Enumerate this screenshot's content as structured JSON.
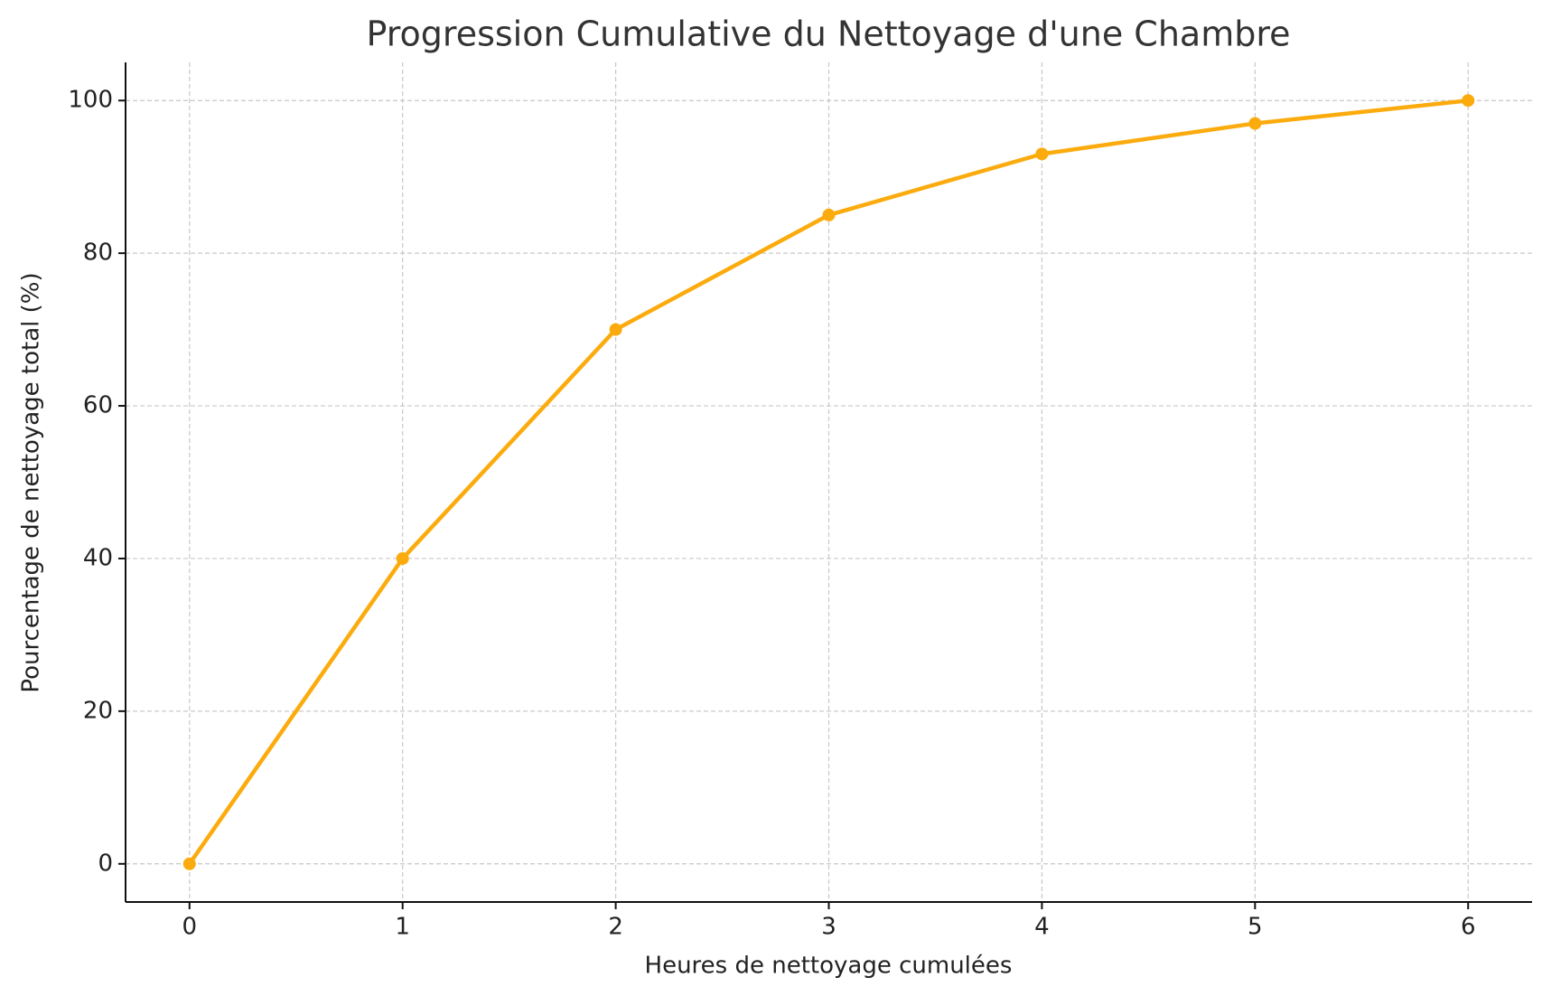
{
  "chart_data": {
    "type": "line",
    "title": "Progression Cumulative du Nettoyage d'une Chambre",
    "xlabel": "Heures de nettoyage cumulées",
    "ylabel": "Pourcentage de nettoyage total (%)",
    "x": [
      0,
      1,
      2,
      3,
      4,
      5,
      6
    ],
    "series": [
      {
        "name": "Progression",
        "color": "#fbab0d",
        "values": [
          0,
          40,
          70,
          85,
          93,
          97,
          100
        ]
      }
    ],
    "xlim": [
      -0.3,
      6.3
    ],
    "xticks": [
      0,
      1,
      2,
      3,
      4,
      5,
      6
    ],
    "ylim": [
      -5,
      105
    ],
    "yticks": [
      0,
      20,
      40,
      60,
      80,
      100
    ],
    "grid": true
  }
}
